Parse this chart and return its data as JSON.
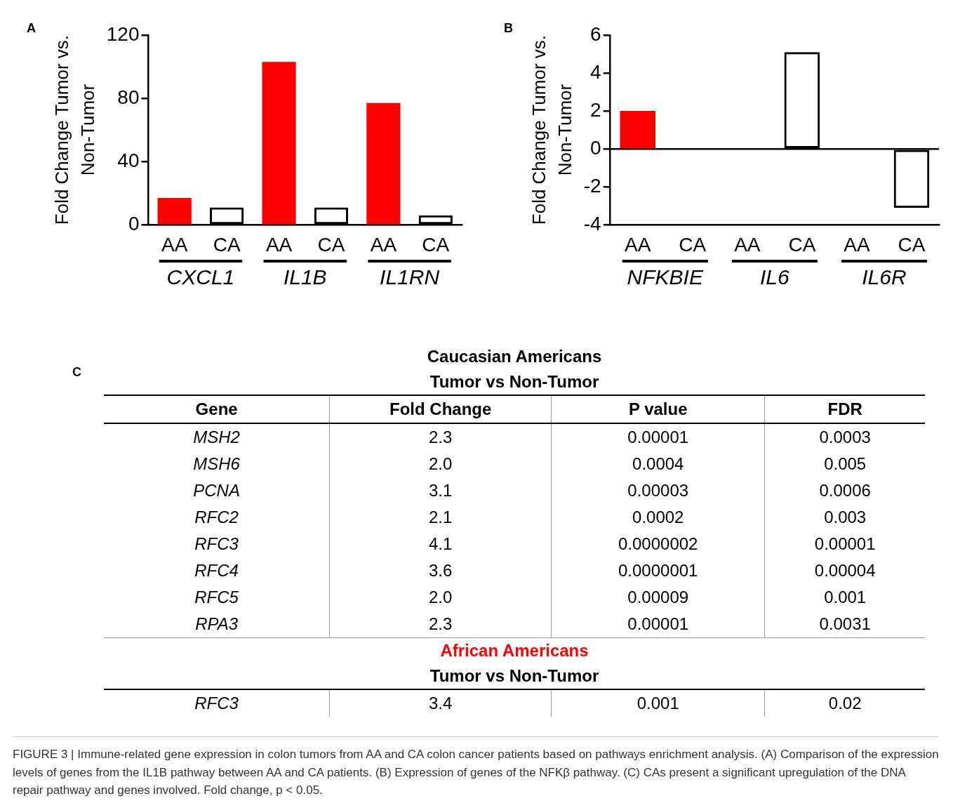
{
  "chart_data": [
    {
      "type": "bar",
      "annotations": [
        "A",
        "CXCL1",
        "IL1B",
        "IL1RN"
      ],
      "ylabel": "Fold Change Tumor vs.\nNon-Tumor",
      "categories": [
        "AA",
        "CA",
        "AA",
        "CA",
        "AA",
        "CA"
      ],
      "values": [
        17,
        11,
        103,
        11,
        77,
        6
      ],
      "colors": [
        "#ff0000",
        "#000000",
        "#ff0000",
        "#000000",
        "#ff0000",
        "#000000"
      ],
      "ylim": [
        0,
        120
      ],
      "yticks": [
        0,
        40,
        80,
        120
      ],
      "grid": false,
      "legend": false
    },
    {
      "type": "bar",
      "annotations": [
        "B",
        "NFKBIE",
        "IL6",
        "IL6R"
      ],
      "ylabel": "Fold Change Tumor vs.\nNon-Tumor",
      "categories": [
        "AA",
        "CA",
        "AA",
        "CA",
        "AA",
        "CA"
      ],
      "values": [
        2,
        null,
        null,
        5.1,
        null,
        -3.1
      ],
      "colors": [
        "#ff0000",
        "#000000",
        "#ff0000",
        "#000000",
        "#ff0000",
        "#000000"
      ],
      "ref_lines": [
        {
          "axis": "y",
          "value": 0,
          "color": "#000000"
        }
      ],
      "ylim": [
        -4,
        6
      ],
      "yticks": [
        -4,
        -2,
        0,
        2,
        4,
        6
      ],
      "grid": false,
      "legend": false
    },
    {
      "type": "other",
      "annotations": [
        "C"
      ],
      "title": "Caucasian Americans",
      "subtitle": "Tumor vs Non-Tumor",
      "categories": [
        "Gene",
        "Fold Change",
        "P value",
        "FDR"
      ],
      "y_categories": [
        "MSH2",
        "MSH6",
        "PCNA",
        "RFC2",
        "RFC3",
        "RFC4",
        "RFC5",
        "RPA3"
      ],
      "cell_labels": [
        [
          "2.3",
          "0.00001",
          "0.0003"
        ],
        [
          "2.0",
          "0.0004",
          "0.005"
        ],
        [
          "3.1",
          "0.00003",
          "0.0006"
        ],
        [
          "2.1",
          "0.0002",
          "0.003"
        ],
        [
          "4.1",
          "0.0000002",
          "0.00001"
        ],
        [
          "3.6",
          "0.0000001",
          "0.00004"
        ],
        [
          "2.0",
          "0.00009",
          "0.001"
        ],
        [
          "2.3",
          "0.00001",
          "0.0031"
        ]
      ]
    },
    {
      "type": "other",
      "title": "African Americans",
      "subtitle": "Tumor vs Non-Tumor",
      "y_categories": [
        "RFC3"
      ],
      "cell_labels": [
        [
          "3.4",
          "0.001",
          "0.02"
        ]
      ],
      "annotations": [
        "FIGURE 3 | Immune-related gene expression in colon tumors from AA and CA colon cancer patients based on pathways enrichment analysis. (A) Comparison of the expression levels of genes from the IL1B pathway between AA and CA patients. (B) Expression of genes of the NFKβ pathway. (C) CAs present a significant upregulation of the DNA repair pathway and genes involved. Fold change, p < 0.05."
      ]
    }
  ]
}
